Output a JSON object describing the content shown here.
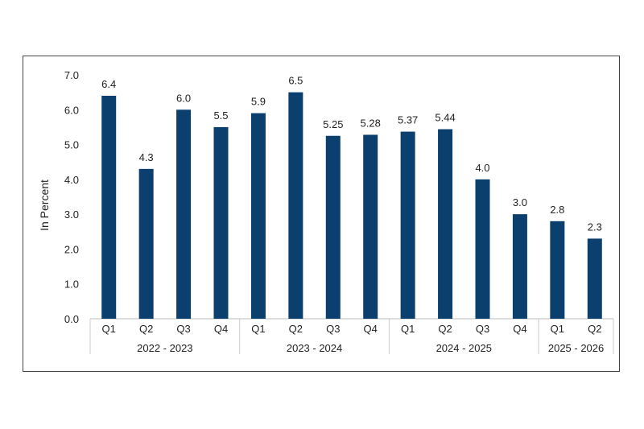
{
  "chart_data": {
    "type": "bar",
    "ylabel": "In Percent",
    "ylim": [
      0,
      7
    ],
    "yticks": [
      "0.0",
      "1.0",
      "2.0",
      "3.0",
      "4.0",
      "5.0",
      "6.0",
      "7.0"
    ],
    "grid": false,
    "bar_color": "#0b3f6e",
    "categories": [
      "Q1",
      "Q2",
      "Q3",
      "Q4",
      "Q1",
      "Q2",
      "Q3",
      "Q4",
      "Q1",
      "Q2",
      "Q3",
      "Q4",
      "Q1",
      "Q2"
    ],
    "values": [
      6.4,
      4.3,
      6.0,
      5.5,
      5.9,
      6.5,
      5.25,
      5.28,
      5.37,
      5.44,
      4.0,
      3.0,
      2.8,
      2.3
    ],
    "value_labels": [
      "6.4",
      "4.3",
      "6.0",
      "5.5",
      "5.9",
      "6.5",
      "5.25",
      "5.28",
      "5.37",
      "5.44",
      "4.0",
      "3.0",
      "2.8",
      "2.3"
    ],
    "groups": [
      {
        "label": "2022 - 2023",
        "count": 4
      },
      {
        "label": "2023 - 2024",
        "count": 4
      },
      {
        "label": "2024 - 2025",
        "count": 4
      },
      {
        "label": "2025 - 2026",
        "count": 2
      }
    ]
  }
}
